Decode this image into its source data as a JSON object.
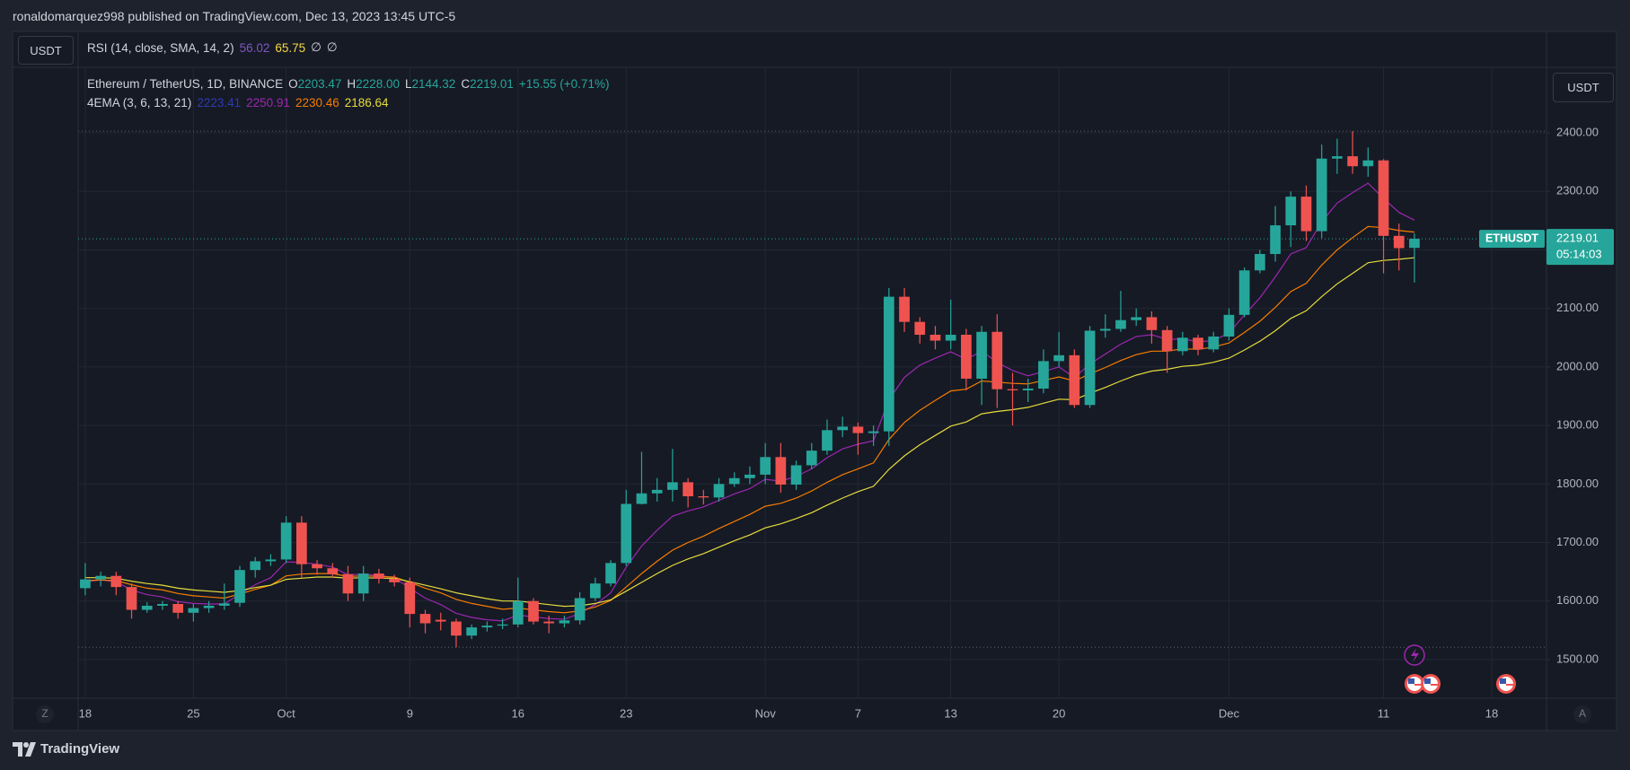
{
  "header": {
    "published": "ronaldomarquez998 published on TradingView.com, Dec 13, 2023 13:45 UTC-5"
  },
  "rsi_pane": {
    "currency": "USDT",
    "label": "RSI (14, close, SMA, 14, 2)",
    "rsi": 56.02,
    "rsi_color": "#7e57c2",
    "sma": 65.75,
    "sma_color": "#f5d742",
    "extras": [
      "∅",
      "∅"
    ]
  },
  "time_axis_buttons": [
    "Z",
    "A"
  ],
  "footer": {
    "brand": "TradingView"
  },
  "chart_data": {
    "type": "candlestick",
    "title": "Ethereum / TetherUS, 1D, BINANCE",
    "ohlc_legend": [
      {
        "key": "O",
        "value": "2203.47"
      },
      {
        "key": "H",
        "value": "2228.00"
      },
      {
        "key": "L",
        "value": "2144.32"
      },
      {
        "key": "C",
        "value": "2219.01"
      }
    ],
    "change": "+15.55 (+0.71%)",
    "currency": "USDT",
    "symbol": "ETHUSDT",
    "countdown": "05:14:03",
    "up_color": "#26a69a",
    "down_color": "#ef5350",
    "grid": true,
    "categories": [
      "18",
      null,
      null,
      null,
      null,
      null,
      null,
      "25",
      null,
      null,
      null,
      null,
      null,
      "Oct",
      null,
      null,
      null,
      null,
      null,
      null,
      null,
      "9",
      null,
      null,
      null,
      null,
      null,
      null,
      "16",
      null,
      null,
      null,
      null,
      null,
      null,
      "23",
      null,
      null,
      null,
      null,
      null,
      null,
      null,
      null,
      "Nov",
      null,
      null,
      null,
      null,
      null,
      "7",
      null,
      null,
      null,
      null,
      null,
      "13",
      null,
      null,
      null,
      null,
      null,
      null,
      "20",
      null,
      null,
      null,
      null,
      null,
      null,
      null,
      null,
      null,
      null,
      "Dec",
      null,
      null,
      null,
      null,
      null,
      null,
      null,
      null,
      null,
      "11",
      null,
      null,
      null,
      null,
      null,
      null,
      "18",
      null,
      null,
      null
    ],
    "open": [
      1622,
      1637,
      1643,
      1624,
      1585,
      1592,
      1595,
      1580,
      1588,
      1592,
      1597,
      1653,
      1668,
      1671,
      1734,
      1663,
      1656,
      1646,
      1613,
      1647,
      1638,
      1632,
      1578,
      1568,
      1565,
      1541,
      1555,
      1558,
      1560,
      1600,
      1565,
      1562,
      1567,
      1605,
      1630,
      1665,
      1766,
      1784,
      1790,
      1803,
      1779,
      1777,
      1800,
      1810,
      1816,
      1846,
      1799,
      1832,
      1857,
      1892,
      1898,
      1887,
      1890,
      2120,
      2077,
      2055,
      2045,
      2055,
      1980,
      2060,
      1962,
      1960,
      1963,
      2010,
      2020,
      1935,
      2062,
      2065,
      2080,
      2085,
      2063,
      2027,
      2050,
      2030,
      2052,
      2089,
      2165,
      2193,
      2242,
      2291,
      2232,
      2356,
      2360,
      2343,
      2353,
      2224,
      2203.47,
      null,
      null,
      null,
      null,
      null,
      null,
      null,
      null
    ],
    "high": [
      1665,
      1650,
      1650,
      1630,
      1598,
      1600,
      1600,
      1595,
      1600,
      1630,
      1660,
      1675,
      1680,
      1745,
      1745,
      1670,
      1665,
      1660,
      1660,
      1655,
      1645,
      1640,
      1585,
      1580,
      1570,
      1560,
      1565,
      1570,
      1640,
      1605,
      1575,
      1575,
      1615,
      1640,
      1670,
      1790,
      1855,
      1810,
      1860,
      1810,
      1790,
      1810,
      1820,
      1830,
      1870,
      1870,
      1840,
      1870,
      1910,
      1915,
      1905,
      1900,
      2135,
      2135,
      2085,
      2070,
      2115,
      2065,
      2070,
      2090,
      1990,
      1980,
      2030,
      2060,
      2030,
      2070,
      2090,
      2130,
      2100,
      2095,
      2070,
      2060,
      2055,
      2060,
      2100,
      2170,
      2200,
      2275,
      2300,
      2310,
      2380,
      2390,
      2403,
      2375,
      2355,
      2245,
      2228,
      null,
      null,
      null,
      null,
      null,
      null,
      null,
      null
    ],
    "low": [
      1610,
      1625,
      1610,
      1570,
      1580,
      1585,
      1570,
      1565,
      1580,
      1585,
      1590,
      1640,
      1660,
      1665,
      1640,
      1645,
      1640,
      1600,
      1600,
      1630,
      1625,
      1555,
      1545,
      1550,
      1521,
      1535,
      1548,
      1552,
      1555,
      1560,
      1545,
      1555,
      1560,
      1600,
      1625,
      1660,
      1765,
      1770,
      1770,
      1760,
      1765,
      1770,
      1795,
      1800,
      1800,
      1785,
      1790,
      1825,
      1850,
      1880,
      1850,
      1865,
      1865,
      2060,
      2040,
      2030,
      2030,
      1960,
      1935,
      1930,
      1900,
      1940,
      1955,
      2000,
      1930,
      1930,
      2050,
      2060,
      2070,
      2040,
      1990,
      2020,
      2020,
      2025,
      2045,
      2085,
      2160,
      2180,
      2205,
      2215,
      2220,
      2330,
      2330,
      2325,
      2160,
      2165,
      2144.32,
      null,
      null,
      null,
      null,
      null,
      null,
      null,
      null
    ],
    "close": [
      1637,
      1643,
      1624,
      1585,
      1592,
      1595,
      1580,
      1588,
      1592,
      1596,
      1653,
      1668,
      1671,
      1734,
      1663,
      1656,
      1646,
      1613,
      1647,
      1638,
      1632,
      1578,
      1562,
      1565,
      1541,
      1555,
      1558,
      1560,
      1600,
      1565,
      1562,
      1567,
      1605,
      1630,
      1665,
      1766,
      1784,
      1790,
      1803,
      1779,
      1777,
      1800,
      1810,
      1816,
      1846,
      1799,
      1832,
      1857,
      1892,
      1898,
      1887,
      1890,
      2120,
      2077,
      2055,
      2045,
      2055,
      1980,
      2060,
      1962,
      1960,
      1963,
      2010,
      2020,
      1935,
      2062,
      2065,
      2080,
      2085,
      2063,
      2027,
      2050,
      2030,
      2052,
      2089,
      2165,
      2193,
      2242,
      2291,
      2232,
      2356,
      2360,
      2343,
      2353,
      2224,
      2203,
      2219.01,
      null,
      null,
      null,
      null,
      null,
      null,
      null,
      null
    ],
    "indicator": {
      "label": "4EMA (3, 6, 13, 21)",
      "series": [
        {
          "color": "#2f3bb0",
          "last": 2223.41
        },
        {
          "color": "#9c27b0",
          "last": 2250.91,
          "values": [
            1633,
            1636,
            1633,
            1619,
            1611,
            1607,
            1599,
            1596,
            1595,
            1595,
            1612,
            1628,
            1640,
            1667,
            1666,
            1663,
            1658,
            1645,
            1646,
            1644,
            1640,
            1622,
            1605,
            1594,
            1579,
            1572,
            1568,
            1566,
            1576,
            1573,
            1570,
            1569,
            1579,
            1594,
            1614,
            1658,
            1694,
            1721,
            1745,
            1754,
            1761,
            1772,
            1783,
            1792,
            1808,
            1805,
            1813,
            1826,
            1845,
            1860,
            1868,
            1874,
            1944,
            1982,
            2003,
            2015,
            2026,
            2013,
            2027,
            2008,
            1994,
            1985,
            1992,
            2000,
            1982,
            2005,
            2022,
            2039,
            2052,
            2055,
            2047,
            2048,
            2043,
            2045,
            2058,
            2089,
            2118,
            2154,
            2193,
            2204,
            2248,
            2280,
            2298,
            2314,
            2288,
            2264,
            2250.91,
            null,
            null,
            null,
            null,
            null,
            null,
            null,
            null
          ]
        },
        {
          "color": "#f57c00",
          "last": 2230.46,
          "values": [
            1635,
            1636,
            1635,
            1628,
            1622,
            1619,
            1613,
            1609,
            1607,
            1605,
            1612,
            1620,
            1627,
            1643,
            1646,
            1647,
            1647,
            1642,
            1643,
            1642,
            1641,
            1632,
            1622,
            1614,
            1603,
            1596,
            1591,
            1586,
            1588,
            1585,
            1582,
            1580,
            1583,
            1590,
            1601,
            1624,
            1647,
            1668,
            1687,
            1700,
            1711,
            1724,
            1736,
            1748,
            1762,
            1767,
            1776,
            1788,
            1803,
            1816,
            1826,
            1836,
            1876,
            1905,
            1926,
            1943,
            1959,
            1962,
            1976,
            1974,
            1972,
            1971,
            1977,
            1983,
            1976,
            1988,
            1999,
            2011,
            2021,
            2027,
            2027,
            2031,
            2030,
            2034,
            2041,
            2059,
            2078,
            2102,
            2129,
            2143,
            2174,
            2200,
            2221,
            2240,
            2238,
            2233,
            2230.46,
            null,
            null,
            null,
            null,
            null,
            null,
            null,
            null
          ]
        },
        {
          "color": "#e6dc3c",
          "last": 2186.64,
          "values": [
            1640,
            1640,
            1639,
            1634,
            1630,
            1627,
            1622,
            1619,
            1617,
            1615,
            1618,
            1623,
            1627,
            1637,
            1639,
            1641,
            1641,
            1639,
            1640,
            1639,
            1639,
            1633,
            1627,
            1621,
            1614,
            1609,
            1604,
            1600,
            1600,
            1597,
            1594,
            1591,
            1592,
            1596,
            1602,
            1617,
            1632,
            1647,
            1661,
            1672,
            1681,
            1692,
            1703,
            1713,
            1725,
            1732,
            1741,
            1751,
            1764,
            1776,
            1787,
            1796,
            1825,
            1848,
            1867,
            1883,
            1899,
            1906,
            1920,
            1924,
            1927,
            1931,
            1938,
            1945,
            1944,
            1955,
            1965,
            1976,
            1986,
            1993,
            1996,
            2001,
            2003,
            2008,
            2015,
            2029,
            2044,
            2062,
            2083,
            2096,
            2120,
            2142,
            2160,
            2178,
            2182,
            2184,
            2186.64,
            null,
            null,
            null,
            null,
            null,
            null,
            null,
            null
          ]
        }
      ]
    },
    "ylim": [
      1434,
      2512
    ],
    "yticks": [
      {
        "value": 1500,
        "label": "1500.00"
      },
      {
        "value": 1600,
        "label": "1600.00"
      },
      {
        "value": 1700,
        "label": "1700.00"
      },
      {
        "value": 1800,
        "label": "1800.00"
      },
      {
        "value": 1900,
        "label": "1900.00"
      },
      {
        "value": 2000,
        "label": "2000.00"
      },
      {
        "value": 2100,
        "label": "2100.00"
      },
      {
        "value": 2200,
        "label": "2200.00"
      },
      {
        "value": 2300,
        "label": "2300.00"
      },
      {
        "value": 2400,
        "label": "2400.00"
      }
    ]
  }
}
